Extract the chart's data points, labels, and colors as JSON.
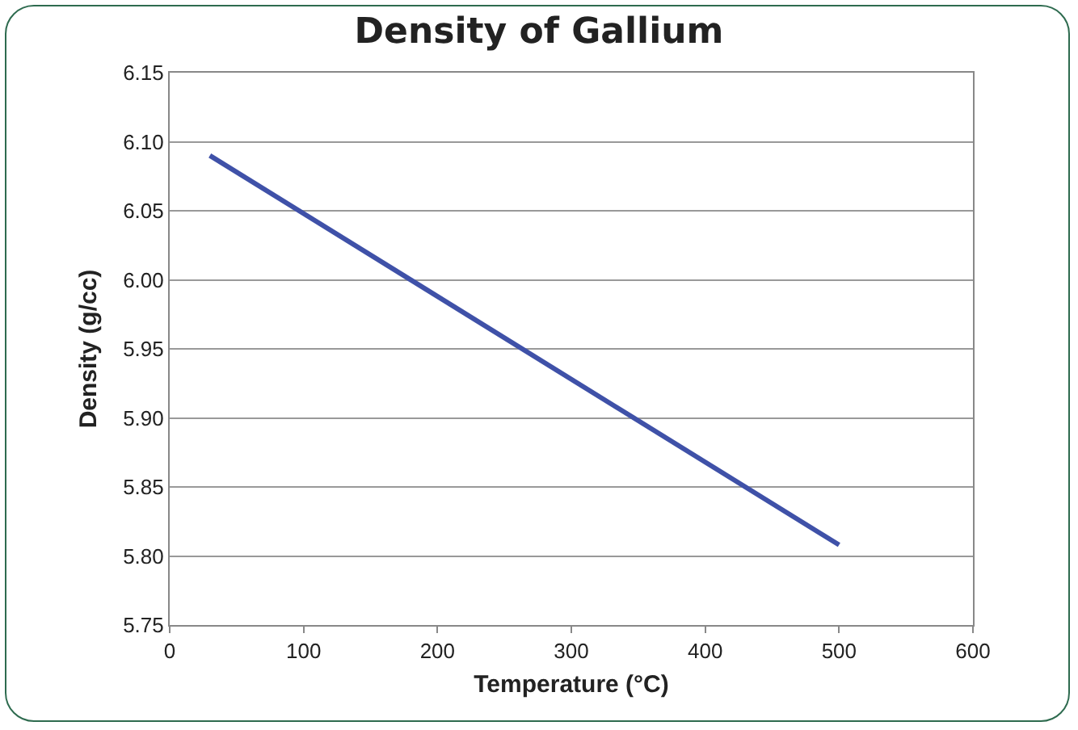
{
  "chart_data": {
    "type": "line",
    "title": "Density of Gallium",
    "xlabel": "Temperature (°C)",
    "ylabel": "Density (g/cc)",
    "x": [
      30,
      500
    ],
    "series": [
      {
        "color": "#3f51a8",
        "values": [
          6.09,
          5.808
        ]
      }
    ],
    "xlim": [
      0,
      600
    ],
    "xticks": [
      0,
      100,
      200,
      300,
      400,
      500,
      600
    ],
    "ylim": [
      5.75,
      6.15
    ],
    "yticks": [
      {
        "value": 5.75,
        "label": "5.75"
      },
      {
        "value": 5.8,
        "label": "5.80"
      },
      {
        "value": 5.85,
        "label": "5.85"
      },
      {
        "value": 5.9,
        "label": "5.90"
      },
      {
        "value": 5.95,
        "label": "5.95"
      },
      {
        "value": 6.0,
        "label": "6.00"
      },
      {
        "value": 6.05,
        "label": "6.05"
      },
      {
        "value": 6.1,
        "label": "6.10"
      },
      {
        "value": 6.15,
        "label": "6.15"
      }
    ],
    "grid": "y",
    "marker": "none",
    "line_style": "solid"
  }
}
